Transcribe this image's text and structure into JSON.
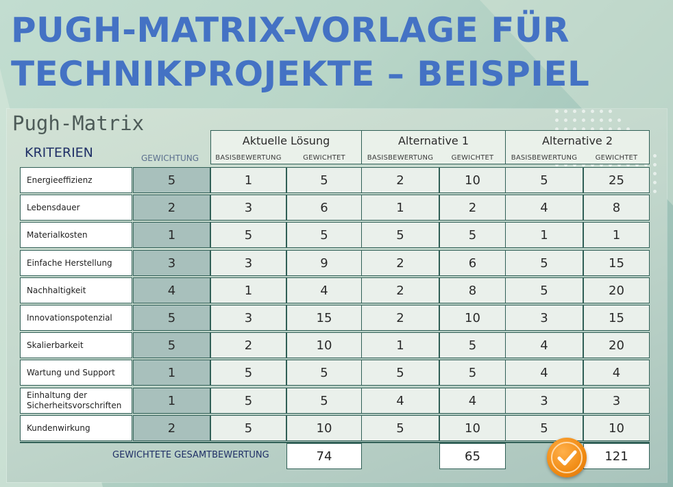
{
  "title_lines": [
    "PUGH-MATRIX-VORLAGE FÜR",
    "TECHNIKPROJEKTE – BEISPIEL"
  ],
  "panel_title": "Pugh-Matrix",
  "headers": {
    "criteria": "KRITERIEN",
    "weighting": "GEWICHTUNG",
    "groups": [
      "Aktuelle Lösung",
      "Alternative 1",
      "Alternative 2"
    ],
    "sub_base": "BASISBEWERTUNG",
    "sub_weighted": "GEWICHTET"
  },
  "rows": [
    {
      "criterion": "Energieeffizienz",
      "weight": "5",
      "values": [
        "1",
        "5",
        "2",
        "10",
        "5",
        "25"
      ]
    },
    {
      "criterion": "Lebensdauer",
      "weight": "2",
      "values": [
        "3",
        "6",
        "1",
        "2",
        "4",
        "8"
      ]
    },
    {
      "criterion": "Materialkosten",
      "weight": "1",
      "values": [
        "5",
        "5",
        "5",
        "5",
        "1",
        "1"
      ]
    },
    {
      "criterion": "Einfache Herstellung",
      "weight": "3",
      "values": [
        "3",
        "9",
        "2",
        "6",
        "5",
        "15"
      ]
    },
    {
      "criterion": "Nachhaltigkeit",
      "weight": "4",
      "values": [
        "1",
        "4",
        "2",
        "8",
        "5",
        "20"
      ]
    },
    {
      "criterion": "Innovationspotenzial",
      "weight": "5",
      "values": [
        "3",
        "15",
        "2",
        "10",
        "3",
        "15"
      ]
    },
    {
      "criterion": "Skalierbarkeit",
      "weight": "5",
      "values": [
        "2",
        "10",
        "1",
        "5",
        "4",
        "20"
      ]
    },
    {
      "criterion": "Wartung und Support",
      "weight": "1",
      "values": [
        "5",
        "5",
        "5",
        "5",
        "4",
        "4"
      ]
    },
    {
      "criterion": "Einhaltung der\nSicherheitsvorschriften",
      "weight": "1",
      "values": [
        "5",
        "5",
        "4",
        "4",
        "3",
        "3"
      ]
    },
    {
      "criterion": "Kundenwirkung",
      "weight": "2",
      "values": [
        "5",
        "10",
        "5",
        "10",
        "5",
        "10"
      ]
    }
  ],
  "total_label": "GEWICHTETE GESAMTBEWERTUNG",
  "totals": [
    "74",
    "65",
    "121"
  ],
  "winner_icon": "checkmark-badge-icon",
  "colors": {
    "title": "#4472c4",
    "weight_column": "#a8c0bc",
    "value_cells": "#eaf0eb",
    "border": "#2f5e55",
    "check_badge": "#f08a12"
  }
}
